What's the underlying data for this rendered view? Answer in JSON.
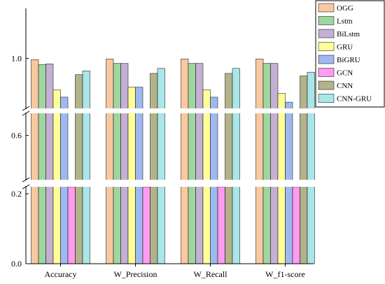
{
  "chart_data": {
    "type": "bar",
    "categories": [
      "Accuracy",
      "W_Precision",
      "W_Recall",
      "W_f1-score"
    ],
    "series": [
      {
        "name": "OGG",
        "color": "#f8c8a0",
        "values": [
          0.995,
          0.998,
          0.998,
          0.998
        ]
      },
      {
        "name": "Lstm",
        "color": "#9fd69f",
        "values": [
          0.975,
          0.98,
          0.98,
          0.98
        ]
      },
      {
        "name": "BiLstm",
        "color": "#c5b0d5",
        "values": [
          0.978,
          0.98,
          0.98,
          0.98
        ]
      },
      {
        "name": "GRU",
        "color": "#ffff99",
        "values": [
          0.875,
          0.885,
          0.875,
          0.86
        ]
      },
      {
        "name": "BiGRU",
        "color": "#9fb9f0",
        "values": [
          0.845,
          0.885,
          0.845,
          0.825
        ]
      },
      {
        "name": "GCN",
        "color": "#ff9bf0",
        "values": [
          0.46,
          0.46,
          0.46,
          0.46
        ]
      },
      {
        "name": "CNN",
        "color": "#b3b38a",
        "values": [
          0.935,
          0.94,
          0.94,
          0.93
        ]
      },
      {
        "name": "CNN-GRU",
        "color": "#a8e6e8",
        "values": [
          0.95,
          0.96,
          0.96,
          0.945
        ]
      }
    ],
    "yticks": [
      "0.0",
      "0.2",
      "0.6",
      "1.0"
    ],
    "ytick_values": [
      0.0,
      0.2,
      0.6,
      1.0
    ],
    "axis_breaks": [
      [
        0.22,
        0.5
      ],
      [
        0.65,
        0.8
      ]
    ],
    "ylim": [
      0,
      1.2
    ],
    "title": "",
    "xlabel": "",
    "ylabel": "",
    "legend_position": "top-right",
    "grid": false
  }
}
